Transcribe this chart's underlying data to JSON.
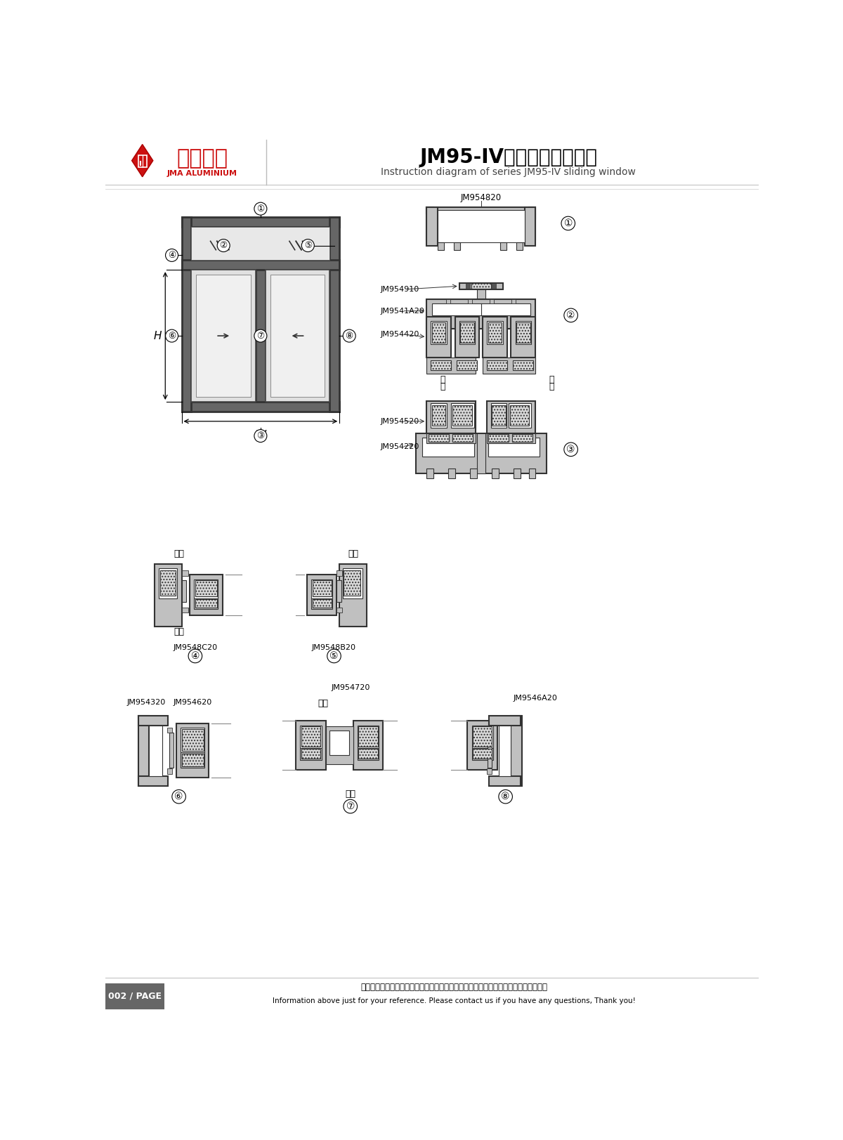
{
  "title_cn": "JM95-IV系列推拉窗结构图",
  "title_en": "Instruction diagram of series JM95-IV sliding window",
  "bg_color": "#ffffff",
  "lc": "#333333",
  "fc_al": "#c0c0c0",
  "fc_glass": "#d8d8d8",
  "footer_text": "002 / PAGE",
  "footer_cn": "图中所示型材截面、装配、编号、尺寸及重量仅供参考。如有疑问，请向本公司查询。",
  "footer_en": "Information above just for your reference. Please contact us if you have any questions, Thank you!",
  "logo_text_cn": "坚美铝业",
  "logo_text_en": "JMA ALUMINIUM"
}
